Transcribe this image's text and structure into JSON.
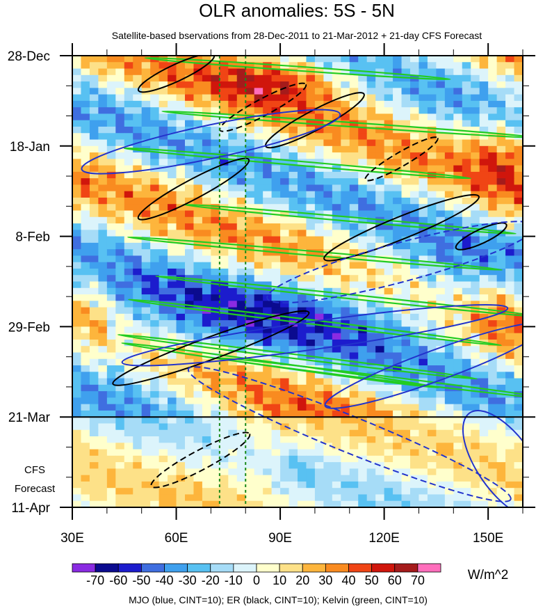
{
  "chart_data": {
    "type": "heatmap",
    "title": "OLR anomalies: 5S - 5N",
    "subtitle": "Satellite-based bservations from 28-Dec-2011 to 21-Mar-2012 + 21-day CFS Forecast",
    "x_ticks": [
      "30E",
      "60E",
      "90E",
      "120E",
      "150E"
    ],
    "x_tick_values": [
      30,
      60,
      90,
      120,
      150
    ],
    "x_range": [
      30,
      160
    ],
    "y_ticks": [
      "28-Dec",
      "18-Jan",
      "8-Feb",
      "29-Feb",
      "21-Mar",
      "11-Apr"
    ],
    "y_tick_days": [
      0,
      21,
      42,
      63,
      84,
      105
    ],
    "y_range_days": [
      0,
      105
    ],
    "forecast_start_day": 84,
    "forecast_label": [
      "CFS",
      "Forecast"
    ],
    "reference_lines_deg": [
      72.5,
      80
    ],
    "colorbar": {
      "levels": [
        "-70",
        "-60",
        "-50",
        "-40",
        "-30",
        "-20",
        "-10",
        "0",
        "10",
        "20",
        "30",
        "40",
        "50",
        "60",
        "70"
      ],
      "colors": [
        "#8a2be2",
        "#0b0b8f",
        "#1c1ccd",
        "#3f6ee0",
        "#3fa0ee",
        "#58c1f2",
        "#a6dcf7",
        "#dcf4fb",
        "#ffffcc",
        "#fde188",
        "#fdb53c",
        "#f98b20",
        "#f04515",
        "#d0160c",
        "#a51b1b",
        "#ff6ebc"
      ],
      "unit": "W/m^2"
    },
    "caption": "MJO (blue, CINT=10); ER (black, CINT=10); Kelvin (green, CINT=10)",
    "grid": false
  }
}
